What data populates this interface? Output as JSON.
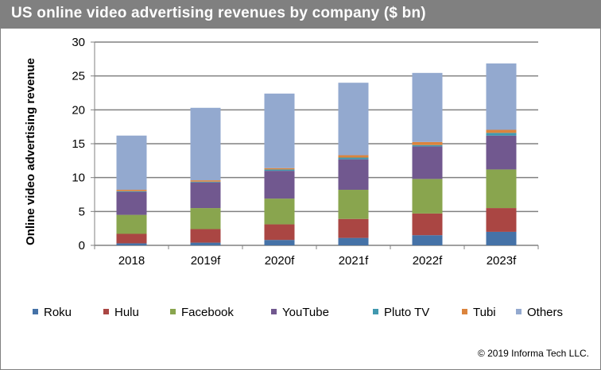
{
  "chart_data": {
    "type": "bar",
    "stacked": true,
    "title": "US online video advertising revenues by company ($ bn)",
    "xlabel": "",
    "ylabel": "Online video advertising revenue",
    "ylim": [
      0,
      30
    ],
    "yticks": [
      0,
      5,
      10,
      15,
      20,
      25,
      30
    ],
    "grid": true,
    "legend": "bottom",
    "categories": [
      "2018",
      "2019f",
      "2020f",
      "2021f",
      "2022f",
      "2023f"
    ],
    "series": [
      {
        "name": "Roku",
        "color": "#4572a7",
        "values": [
          0.3,
          0.4,
          0.8,
          1.1,
          1.5,
          2.0
        ]
      },
      {
        "name": "Hulu",
        "color": "#aa4643",
        "values": [
          1.4,
          2.0,
          2.3,
          2.8,
          3.2,
          3.5
        ]
      },
      {
        "name": "Facebook",
        "color": "#89a54e",
        "values": [
          2.8,
          3.1,
          3.8,
          4.3,
          5.1,
          5.7
        ]
      },
      {
        "name": "YouTube",
        "color": "#71588f",
        "values": [
          3.4,
          3.8,
          4.1,
          4.5,
          4.8,
          5.0
        ]
      },
      {
        "name": "Pluto TV",
        "color": "#4198af",
        "values": [
          0.1,
          0.1,
          0.2,
          0.25,
          0.2,
          0.4
        ]
      },
      {
        "name": "Tubi",
        "color": "#db843d",
        "values": [
          0.2,
          0.2,
          0.2,
          0.35,
          0.45,
          0.45
        ]
      },
      {
        "name": "Others",
        "color": "#93a9cf",
        "values": [
          8.0,
          10.7,
          11.0,
          10.7,
          10.2,
          9.8
        ]
      }
    ]
  },
  "footer": {
    "copyright": "© 2019 Informa Tech LLC."
  }
}
